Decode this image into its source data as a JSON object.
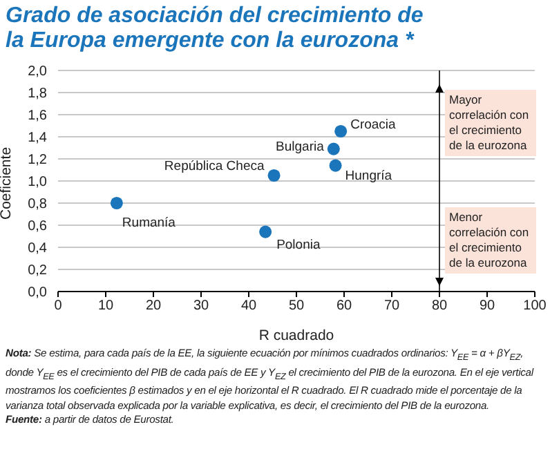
{
  "chart_data": {
    "type": "scatter",
    "title": "Grado de asociación del crecimiento de la Europa emergente con la eurozona *",
    "xlabel": "R cuadrado",
    "ylabel": "Coeficiente",
    "series": [
      {
        "name": "Croacia",
        "color": "#1b75bb",
        "x": [
          59.3
        ],
        "values": [
          1.45
        ]
      },
      {
        "name": "Bulgaria",
        "color": "#1b75bb",
        "x": [
          57.8
        ],
        "values": [
          1.29
        ]
      },
      {
        "name": "Hungría",
        "color": "#1b75bb",
        "x": [
          58.2
        ],
        "values": [
          1.14
        ]
      },
      {
        "name": "República Checa",
        "color": "#1b75bb",
        "x": [
          45.3
        ],
        "values": [
          1.05
        ]
      },
      {
        "name": "Rumanía",
        "color": "#1b75bb",
        "x": [
          12.3
        ],
        "values": [
          0.8
        ]
      },
      {
        "name": "Polonia",
        "color": "#1b75bb",
        "x": [
          43.5
        ],
        "values": [
          0.54
        ]
      }
    ],
    "xlim": [
      0,
      100
    ],
    "xticks": [
      0,
      10,
      20,
      30,
      40,
      50,
      60,
      70,
      80,
      90,
      100
    ],
    "ylim": [
      0,
      2
    ],
    "yticks": [
      {
        "value": 0,
        "label": "0,0"
      },
      {
        "value": 0.2,
        "label": "0,2"
      },
      {
        "value": 0.4,
        "label": "0,4"
      },
      {
        "value": 0.6,
        "label": "0,6"
      },
      {
        "value": 0.8,
        "label": "0,8"
      },
      {
        "value": 1,
        "label": "1,0"
      },
      {
        "value": 1.2,
        "label": "1,2"
      },
      {
        "value": 1.4,
        "label": "1,4"
      },
      {
        "value": 1.6,
        "label": "1,6"
      },
      {
        "value": 1.8,
        "label": "1,8"
      },
      {
        "value": 2,
        "label": "2,0"
      }
    ],
    "grid": "y",
    "marker": "circle",
    "ref_lines": [
      {
        "axis": "x",
        "value": 80,
        "color": "#000000"
      }
    ],
    "annotations": [
      "Mayor correlación con el crecimiento de la eurozona",
      "Menor correlación con el crecimiento de la eurozona",
      "Nota: Se estima, para cada país de la EE, la siguiente ecuación por mínimos cuadrados ordinarios: Y$_{EE}$ = α + βY$_{EZ}$, donde Y$_{EE}$ es el crecimiento del PIB de cada país de EE y Y$_{EZ}$ el crecimiento del PIB de la eurozona. En el eje vertical mostramos los coeficientes β estimados y en el eje horizontal el R cuadrado. El R cuadrado mide el porcentaje de la varianza total observada explicada por la variable explicativa, es decir, el crecimiento del PIB de la eurozona.",
      "Fuente: a partir de datos de Eurostat."
    ]
  }
}
